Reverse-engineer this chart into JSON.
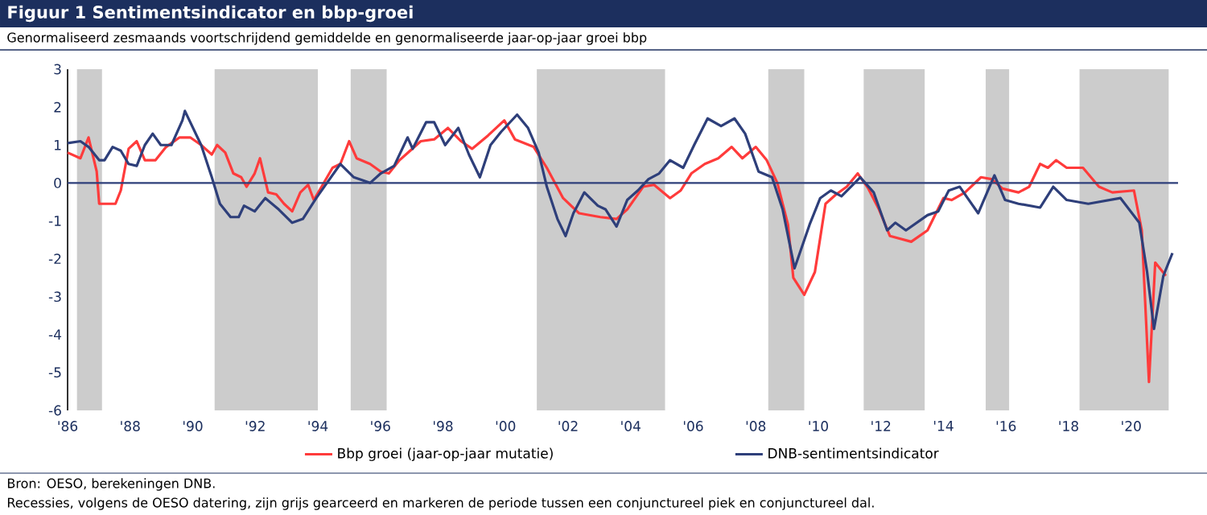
{
  "chart_data": {
    "type": "line",
    "title": "Figuur 1 Sentimentsindicator en bbp-groei",
    "subtitle": "Genormaliseerd zesmaands voortschrijdend gemiddelde en genormaliseerde jaar-op-jaar groei bbp",
    "annotations": [
      "Bron: OESO, berekeningen DNB.",
      "Recessies, volgens de OESO datering, zijn grijs gearceerd en markeren de periode tussen een conjunctureel piek en conjunctureel dal."
    ],
    "xlim": [
      1986,
      2021.5
    ],
    "xticks": [
      {
        "value": 1986,
        "label": "'86"
      },
      {
        "value": 1988,
        "label": "'88"
      },
      {
        "value": 1990,
        "label": "'90"
      },
      {
        "value": 1992,
        "label": "'92"
      },
      {
        "value": 1994,
        "label": "'94"
      },
      {
        "value": 1996,
        "label": "'96"
      },
      {
        "value": 1998,
        "label": "'98"
      },
      {
        "value": 2000,
        "label": "'00"
      },
      {
        "value": 2002,
        "label": "'02"
      },
      {
        "value": 2004,
        "label": "'04"
      },
      {
        "value": 2006,
        "label": "'06"
      },
      {
        "value": 2008,
        "label": "'08"
      },
      {
        "value": 2010,
        "label": "'10"
      },
      {
        "value": 2012,
        "label": "'12"
      },
      {
        "value": 2014,
        "label": "'14"
      },
      {
        "value": 2016,
        "label": "'16"
      },
      {
        "value": 2018,
        "label": "'18"
      },
      {
        "value": 2020,
        "label": "'20"
      }
    ],
    "ylim": [
      -6,
      3
    ],
    "yticks": [
      -6,
      -5,
      -4,
      -3,
      -2,
      -1,
      0,
      1,
      2,
      3
    ],
    "grid": false,
    "legend": "bottom",
    "marker": "none",
    "line_style": "solid",
    "ref_lines": [
      {
        "axis": "y",
        "value": 0,
        "color": "#2e3f7a"
      }
    ],
    "bands": [
      {
        "axis": "x",
        "from": 1986.3,
        "to": 1987.1,
        "color": "#cccccc"
      },
      {
        "axis": "x",
        "from": 1990.7,
        "to": 1994.0,
        "color": "#cccccc"
      },
      {
        "axis": "x",
        "from": 1995.05,
        "to": 1996.2,
        "color": "#cccccc"
      },
      {
        "axis": "x",
        "from": 2001.0,
        "to": 2005.1,
        "color": "#cccccc"
      },
      {
        "axis": "x",
        "from": 2008.4,
        "to": 2009.55,
        "color": "#cccccc"
      },
      {
        "axis": "x",
        "from": 2011.45,
        "to": 2013.4,
        "color": "#cccccc"
      },
      {
        "axis": "x",
        "from": 2015.35,
        "to": 2016.1,
        "color": "#cccccc"
      },
      {
        "axis": "x",
        "from": 2018.35,
        "to": 2021.2,
        "color": "#cccccc"
      }
    ],
    "series": [
      {
        "name": "Bbp groei (jaar-op-jaar mutatie)",
        "color": "#ff3b3b",
        "x": [
          1986.0,
          1986.41,
          1986.67,
          1986.93,
          1987.01,
          1987.53,
          1987.7,
          1987.95,
          1988.21,
          1988.47,
          1988.81,
          1989.15,
          1989.58,
          1989.92,
          1990.27,
          1990.61,
          1990.78,
          1991.04,
          1991.3,
          1991.55,
          1991.72,
          1991.98,
          1992.15,
          1992.41,
          1992.67,
          1992.92,
          1993.18,
          1993.44,
          1993.69,
          1993.87,
          1994.12,
          1994.47,
          1994.72,
          1995.0,
          1995.24,
          1995.67,
          1996.01,
          1996.27,
          1996.61,
          1997.29,
          1997.72,
          1998.16,
          1998.58,
          1998.93,
          1999.44,
          1999.96,
          2000.3,
          2000.9,
          2001.32,
          2001.84,
          2002.35,
          2003.03,
          2003.55,
          2003.89,
          2004.4,
          2004.75,
          2005.26,
          2005.6,
          2005.94,
          2006.37,
          2006.8,
          2007.23,
          2007.57,
          2008.0,
          2008.35,
          2008.69,
          2009.03,
          2009.2,
          2009.55,
          2009.89,
          2010.23,
          2010.57,
          2010.91,
          2011.26,
          2011.6,
          2011.94,
          2012.29,
          2012.97,
          2013.49,
          2014.0,
          2014.26,
          2014.69,
          2015.2,
          2015.54,
          2015.89,
          2016.4,
          2016.74,
          2017.09,
          2017.34,
          2017.6,
          2017.94,
          2018.46,
          2018.97,
          2019.4,
          2020.09,
          2020.34,
          2020.57,
          2020.77,
          2021.11
        ],
        "values": [
          0.8,
          0.65,
          1.2,
          0.3,
          -0.55,
          -0.55,
          -0.2,
          0.9,
          1.1,
          0.6,
          0.6,
          0.95,
          1.2,
          1.2,
          1.0,
          0.75,
          1.0,
          0.8,
          0.25,
          0.15,
          -0.1,
          0.25,
          0.65,
          -0.25,
          -0.3,
          -0.55,
          -0.75,
          -0.25,
          -0.05,
          -0.45,
          -0.1,
          0.4,
          0.5,
          1.1,
          0.65,
          0.5,
          0.3,
          0.25,
          0.6,
          1.1,
          1.15,
          1.45,
          1.1,
          0.9,
          1.25,
          1.65,
          1.15,
          0.95,
          0.4,
          -0.4,
          -0.8,
          -0.9,
          -0.95,
          -0.7,
          -0.1,
          -0.05,
          -0.4,
          -0.2,
          0.25,
          0.5,
          0.65,
          0.95,
          0.65,
          0.95,
          0.6,
          0.0,
          -1.1,
          -2.5,
          -2.95,
          -2.35,
          -0.55,
          -0.3,
          -0.1,
          0.25,
          -0.15,
          -0.7,
          -1.4,
          -1.55,
          -1.25,
          -0.4,
          -0.45,
          -0.25,
          0.15,
          0.1,
          -0.15,
          -0.25,
          -0.1,
          0.5,
          0.4,
          0.6,
          0.4,
          0.4,
          -0.1,
          -0.25,
          -0.2,
          -1.25,
          -5.25,
          -2.1,
          -2.45
        ]
      },
      {
        "name": "DNB-sentimentsindicator",
        "color": "#2e3f7a",
        "x": [
          1986.0,
          1986.41,
          1986.67,
          1987.01,
          1987.18,
          1987.44,
          1987.7,
          1987.95,
          1988.21,
          1988.47,
          1988.72,
          1988.98,
          1989.32,
          1989.67,
          1989.75,
          1990.01,
          1990.27,
          1990.61,
          1990.87,
          1991.21,
          1991.47,
          1991.64,
          1991.98,
          1992.32,
          1992.75,
          1993.18,
          1993.52,
          1993.95,
          1994.29,
          1994.72,
          1995.15,
          1995.67,
          1996.01,
          1996.44,
          1996.87,
          1997.03,
          1997.46,
          1997.72,
          1998.07,
          1998.49,
          1998.83,
          1999.18,
          1999.52,
          1999.86,
          2000.37,
          2000.72,
          2001.06,
          2001.32,
          2001.66,
          2001.92,
          2002.17,
          2002.52,
          2002.95,
          2003.2,
          2003.55,
          2003.89,
          2004.23,
          2004.57,
          2004.91,
          2005.26,
          2005.68,
          2006.03,
          2006.46,
          2006.89,
          2007.32,
          2007.66,
          2008.09,
          2008.52,
          2008.86,
          2009.24,
          2009.72,
          2010.06,
          2010.4,
          2010.74,
          2011.34,
          2011.77,
          2012.2,
          2012.46,
          2012.8,
          2013.49,
          2013.83,
          2014.17,
          2014.52,
          2015.11,
          2015.63,
          2015.97,
          2016.4,
          2017.09,
          2017.51,
          2017.94,
          2018.63,
          2019.66,
          2020.26,
          2020.51,
          2020.73,
          2021.03,
          2021.32
        ],
        "values": [
          1.05,
          1.1,
          0.95,
          0.6,
          0.6,
          0.95,
          0.85,
          0.5,
          0.45,
          1.0,
          1.3,
          1.0,
          1.0,
          1.65,
          1.9,
          1.45,
          1.0,
          0.15,
          -0.55,
          -0.9,
          -0.9,
          -0.6,
          -0.75,
          -0.4,
          -0.7,
          -1.05,
          -0.95,
          -0.4,
          0.0,
          0.5,
          0.15,
          0.0,
          0.25,
          0.45,
          1.2,
          0.9,
          1.6,
          1.6,
          1.0,
          1.45,
          0.75,
          0.15,
          1.0,
          1.35,
          1.8,
          1.45,
          0.8,
          -0.1,
          -0.95,
          -1.4,
          -0.8,
          -0.25,
          -0.6,
          -0.7,
          -1.15,
          -0.45,
          -0.2,
          0.1,
          0.25,
          0.6,
          0.4,
          1.0,
          1.7,
          1.5,
          1.7,
          1.3,
          0.3,
          0.15,
          -0.7,
          -2.25,
          -1.1,
          -0.4,
          -0.2,
          -0.35,
          0.15,
          -0.25,
          -1.25,
          -1.05,
          -1.25,
          -0.85,
          -0.75,
          -0.2,
          -0.1,
          -0.8,
          0.2,
          -0.45,
          -0.55,
          -0.65,
          -0.1,
          -0.45,
          -0.55,
          -0.4,
          -1.05,
          -2.35,
          -3.85,
          -2.45,
          -1.85
        ]
      }
    ]
  }
}
